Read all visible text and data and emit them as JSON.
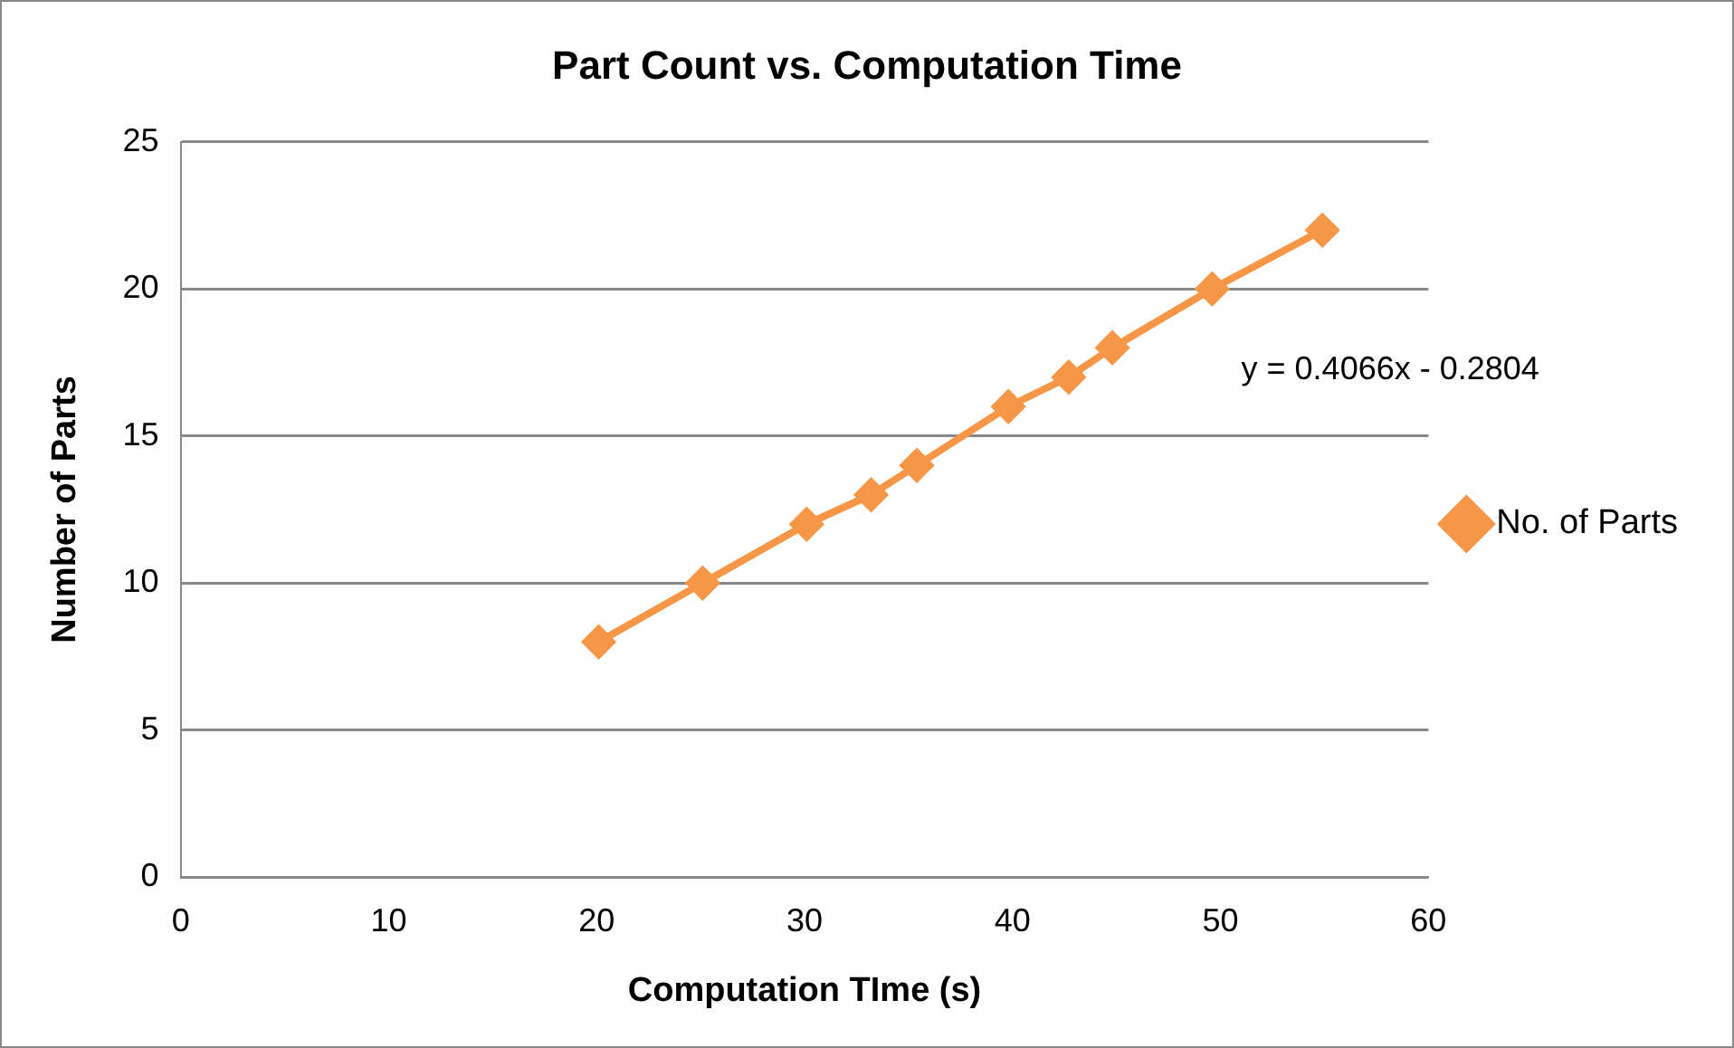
{
  "chart_data": {
    "type": "line",
    "title": "Part Count vs. Computation Time",
    "xlabel": "Computation TIme (s)",
    "ylabel": "Number of Parts",
    "x": [
      20.1,
      25.1,
      30.1,
      33.2,
      35.4,
      39.8,
      42.7,
      44.8,
      49.6,
      54.9
    ],
    "series": [
      {
        "name": "No. of Parts",
        "color": "#f79646",
        "values": [
          8,
          10,
          12,
          13,
          14,
          16,
          17,
          18,
          20,
          22
        ]
      }
    ],
    "xlim": [
      0,
      60
    ],
    "xticks": [
      0,
      10,
      20,
      30,
      40,
      50,
      60
    ],
    "ylim": [
      0,
      25
    ],
    "yticks": [
      0,
      5,
      10,
      15,
      20,
      25
    ],
    "grid": "y",
    "legend": "right",
    "marker": "diamond",
    "line_style": "solid",
    "annotations": [
      "y = 0.4066x - 0.2804"
    ]
  }
}
